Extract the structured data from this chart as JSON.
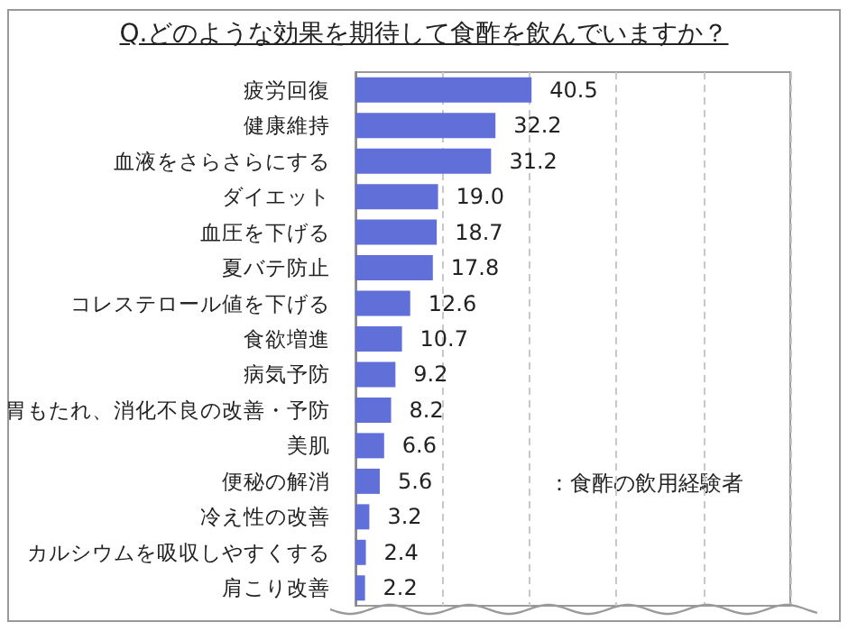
{
  "chart_data": {
    "type": "bar",
    "orientation": "horizontal",
    "title": "Q.どのような効果を期待して食酢を飲んでいますか？",
    "categories": [
      "疲労回復",
      "健康維持",
      "血液をさらさらにする",
      "ダイエット",
      "血圧を下げる",
      "夏バテ防止",
      "コレステロール値を下げる",
      "食欲増進",
      "病気予防",
      "胃もたれ、消化不良の改善・予防",
      "美肌",
      "便秘の解消",
      "冷え性の改善",
      "カルシウムを吸収しやすくする",
      "肩こり改善"
    ],
    "values": [
      40.5,
      32.2,
      31.2,
      19.0,
      18.7,
      17.8,
      12.6,
      10.7,
      9.2,
      8.2,
      6.6,
      5.6,
      3.2,
      2.4,
      2.2
    ],
    "value_labels": [
      "40.5",
      "32.2",
      "31.2",
      "19.0",
      "18.7",
      "17.8",
      "12.6",
      "10.7",
      "9.2",
      "8.2",
      "6.6",
      "5.6",
      "3.2",
      "2.4",
      "2.2"
    ],
    "color": "#6070d8",
    "xlim": [
      0,
      100
    ],
    "xticks": [
      {
        "value": 0,
        "label": null
      },
      {
        "value": 20,
        "label": null
      },
      {
        "value": 40,
        "label": null
      },
      {
        "value": 60,
        "label": null
      },
      {
        "value": 80,
        "label": null
      },
      {
        "value": 100,
        "label": null
      }
    ],
    "grid": "x",
    "tick_labels": "y",
    "annotations": [
      "：食酢の飲用経験者"
    ]
  }
}
